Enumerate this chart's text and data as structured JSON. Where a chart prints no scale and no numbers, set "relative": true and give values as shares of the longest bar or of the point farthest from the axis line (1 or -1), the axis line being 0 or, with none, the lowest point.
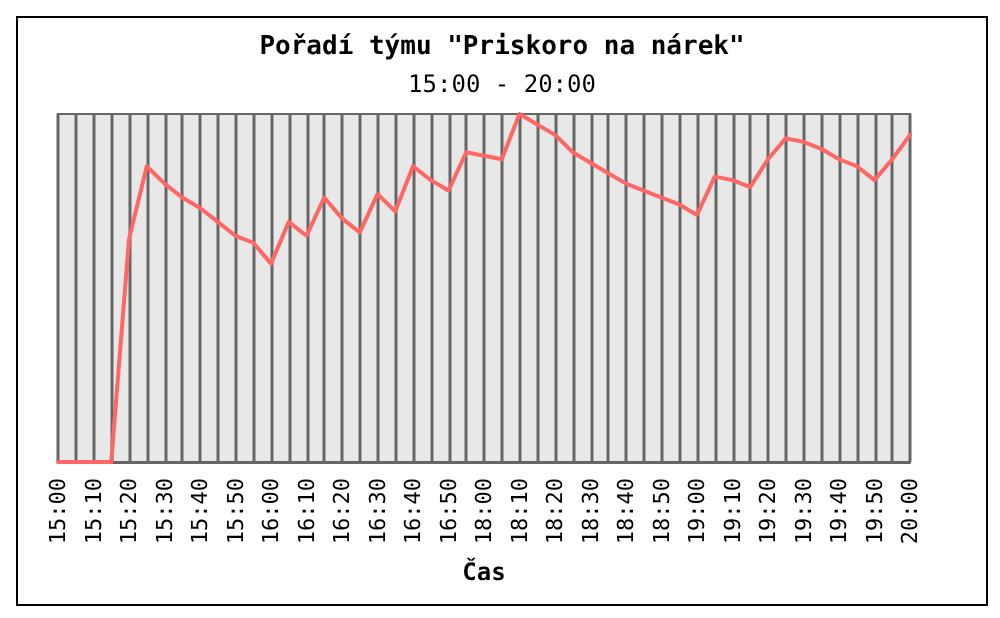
{
  "chart_data": {
    "type": "line",
    "title": "Pořadí týmu \"Priskoro na nárek\"",
    "subtitle": "15:00 - 20:00",
    "xlabel": "Čas",
    "relative": true,
    "grid": "x",
    "marker": "none",
    "line_style": "solid",
    "categories": [
      "15:00",
      null,
      "15:10",
      null,
      "15:20",
      null,
      "15:30",
      null,
      "15:40",
      null,
      "15:50",
      null,
      "16:00",
      null,
      "16:10",
      null,
      "16:20",
      null,
      "16:30",
      null,
      "16:40",
      null,
      "16:50",
      null,
      "18:00",
      null,
      "18:10",
      null,
      "18:20",
      null,
      "18:30",
      null,
      "18:40",
      null,
      "18:50",
      null,
      "19:00",
      null,
      "19:10",
      null,
      "19:20",
      null,
      "19:30",
      null,
      "19:40",
      null,
      "19:50",
      null,
      "20:00"
    ],
    "series": [
      {
        "color": "#ff6666",
        "values": [
          0,
          0,
          0,
          0,
          0.64,
          0.85,
          0.8,
          0.76,
          0.73,
          0.69,
          0.65,
          0.63,
          0.57,
          0.69,
          0.65,
          0.76,
          0.7,
          0.66,
          0.77,
          0.72,
          0.85,
          0.81,
          0.78,
          0.89,
          0.88,
          0.87,
          1,
          0.97,
          0.94,
          0.89,
          0.86,
          0.83,
          0.8,
          0.78,
          0.76,
          0.74,
          0.71,
          0.82,
          0.81,
          0.79,
          0.87,
          0.93,
          0.92,
          0.9,
          0.87,
          0.85,
          0.81,
          0.87,
          0.94
        ]
      }
    ]
  }
}
